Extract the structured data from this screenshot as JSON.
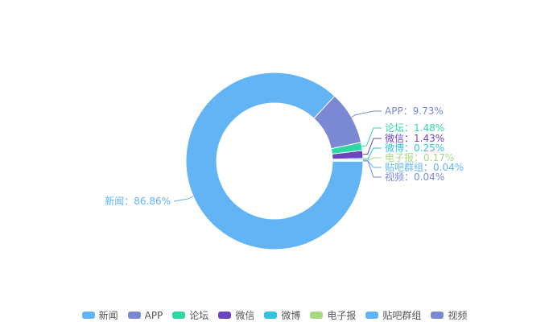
{
  "chart_data": {
    "type": "pie",
    "title": "",
    "categories": [
      "新闻",
      "APP",
      "论坛",
      "微信",
      "微博",
      "电子报",
      "贴吧群组",
      "视频"
    ],
    "values": [
      86.86,
      9.73,
      1.48,
      1.43,
      0.25,
      0.17,
      0.04,
      0.04
    ],
    "labels": [
      "新闻：86.86%",
      "APP：9.73%",
      "论坛：1.48%",
      "微信：1.43%",
      "微博：0.25%",
      "电子报：0.17%",
      "贴吧群组：0.04%",
      "视频：0.04%"
    ],
    "colors": [
      "#62b4f5",
      "#7b89d4",
      "#2ed8a4",
      "#6b45c0",
      "#33c3e0",
      "#a7d883",
      "#62b4f5",
      "#7b89d4"
    ],
    "legend_position": "bottom",
    "donut": true
  }
}
